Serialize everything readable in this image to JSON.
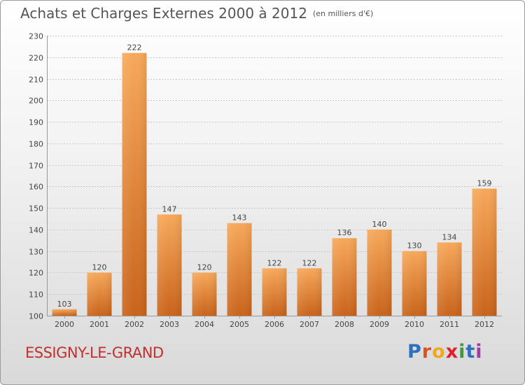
{
  "title": "Achats et Charges Externes 2000 à 2012",
  "unit": "(en milliers d'€)",
  "place": "ESSIGNY-LE-GRAND",
  "logo": {
    "text": "Proxiti",
    "letters": [
      {
        "ch": "P",
        "color": "#2f6fbf"
      },
      {
        "ch": "r",
        "color": "#e0501a"
      },
      {
        "ch": "o",
        "color": "#f2a81d"
      },
      {
        "ch": "x",
        "color": "#e0202a"
      },
      {
        "ch": "i",
        "color": "#3f9a3a"
      },
      {
        "ch": "t",
        "color": "#2f6fbf"
      },
      {
        "ch": "i",
        "color": "#9c3fa0"
      }
    ]
  },
  "colors": {
    "bar_top": "#f7a85a",
    "bar_bottom": "#c9631a",
    "grid": "#c8c8c8",
    "axis_text": "#444444",
    "title": "#555555",
    "place": "#c0302f"
  },
  "chart_data": {
    "type": "bar",
    "title": "Achats et Charges Externes 2000 à 2012",
    "subtitle": "(en milliers d'€)",
    "xlabel": "",
    "ylabel": "",
    "categories": [
      "2000",
      "2001",
      "2002",
      "2003",
      "2004",
      "2005",
      "2006",
      "2007",
      "2008",
      "2009",
      "2010",
      "2011",
      "2012"
    ],
    "values": [
      103,
      120,
      222,
      147,
      120,
      143,
      122,
      122,
      136,
      140,
      130,
      134,
      159
    ],
    "ylim": [
      100,
      230
    ],
    "yticks": [
      100,
      110,
      120,
      130,
      140,
      150,
      160,
      170,
      180,
      190,
      200,
      210,
      220,
      230
    ],
    "grid": true,
    "legend": "none"
  }
}
